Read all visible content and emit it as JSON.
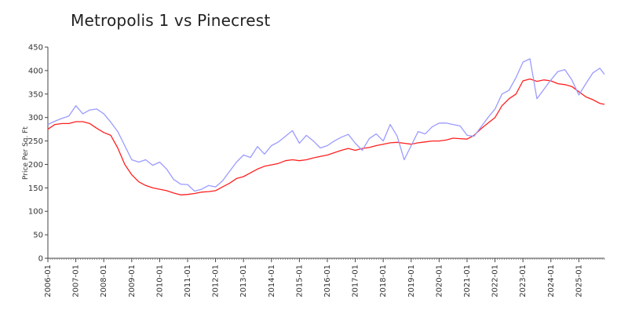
{
  "chart_data": {
    "type": "line",
    "title": "Metropolis 1 vs Pinecrest",
    "xlabel": "",
    "ylabel": "Price Per Sq. Ft",
    "ylim": [
      0,
      450
    ],
    "xlim": [
      "2006-01",
      "2025-12"
    ],
    "yticks": [
      0,
      50,
      100,
      150,
      200,
      250,
      300,
      350,
      400,
      450
    ],
    "xticks": [
      "2006-01",
      "2007-01",
      "2008-01",
      "2009-01",
      "2010-01",
      "2011-01",
      "2012-01",
      "2013-01",
      "2014-01",
      "2015-01",
      "2016-01",
      "2017-01",
      "2018-01",
      "2019-01",
      "2020-01",
      "2021-01",
      "2022-01",
      "2023-01",
      "2024-01",
      "2025-01"
    ],
    "grid": false,
    "legend": "none",
    "series": [
      {
        "color": "#ff2020",
        "points": [
          [
            "2006-01",
            275
          ],
          [
            "2006-04",
            285
          ],
          [
            "2006-07",
            287
          ],
          [
            "2006-10",
            287
          ],
          [
            "2007-01",
            291
          ],
          [
            "2007-04",
            291
          ],
          [
            "2007-07",
            287
          ],
          [
            "2007-10",
            277
          ],
          [
            "2008-01",
            268
          ],
          [
            "2008-04",
            262
          ],
          [
            "2008-07",
            235
          ],
          [
            "2008-10",
            200
          ],
          [
            "2009-01",
            178
          ],
          [
            "2009-04",
            163
          ],
          [
            "2009-07",
            155
          ],
          [
            "2009-10",
            150
          ],
          [
            "2010-01",
            147
          ],
          [
            "2010-04",
            144
          ],
          [
            "2010-07",
            139
          ],
          [
            "2010-10",
            135
          ],
          [
            "2011-01",
            136
          ],
          [
            "2011-04",
            138
          ],
          [
            "2011-07",
            141
          ],
          [
            "2011-10",
            142
          ],
          [
            "2012-01",
            144
          ],
          [
            "2012-04",
            152
          ],
          [
            "2012-07",
            160
          ],
          [
            "2012-10",
            170
          ],
          [
            "2013-01",
            174
          ],
          [
            "2013-04",
            182
          ],
          [
            "2013-07",
            190
          ],
          [
            "2013-10",
            196
          ],
          [
            "2014-01",
            199
          ],
          [
            "2014-04",
            202
          ],
          [
            "2014-07",
            208
          ],
          [
            "2014-10",
            210
          ],
          [
            "2015-01",
            208
          ],
          [
            "2015-04",
            210
          ],
          [
            "2015-07",
            214
          ],
          [
            "2015-10",
            217
          ],
          [
            "2016-01",
            220
          ],
          [
            "2016-04",
            225
          ],
          [
            "2016-07",
            230
          ],
          [
            "2016-10",
            234
          ],
          [
            "2017-01",
            230
          ],
          [
            "2017-04",
            234
          ],
          [
            "2017-07",
            236
          ],
          [
            "2017-10",
            240
          ],
          [
            "2018-01",
            243
          ],
          [
            "2018-04",
            246
          ],
          [
            "2018-07",
            247
          ],
          [
            "2018-10",
            245
          ],
          [
            "2019-01",
            243
          ],
          [
            "2019-04",
            246
          ],
          [
            "2019-07",
            248
          ],
          [
            "2019-10",
            250
          ],
          [
            "2020-01",
            250
          ],
          [
            "2020-04",
            252
          ],
          [
            "2020-07",
            256
          ],
          [
            "2020-10",
            255
          ],
          [
            "2021-01",
            254
          ],
          [
            "2021-04",
            262
          ],
          [
            "2021-07",
            276
          ],
          [
            "2021-10",
            288
          ],
          [
            "2022-01",
            300
          ],
          [
            "2022-04",
            325
          ],
          [
            "2022-07",
            340
          ],
          [
            "2022-10",
            350
          ],
          [
            "2023-01",
            378
          ],
          [
            "2023-04",
            382
          ],
          [
            "2023-07",
            377
          ],
          [
            "2023-10",
            380
          ],
          [
            "2024-01",
            378
          ],
          [
            "2024-04",
            372
          ],
          [
            "2024-07",
            370
          ],
          [
            "2024-10",
            366
          ],
          [
            "2025-01",
            355
          ],
          [
            "2025-04",
            344
          ],
          [
            "2025-07",
            338
          ],
          [
            "2025-10",
            330
          ],
          [
            "2025-12",
            328
          ]
        ]
      },
      {
        "color": "#9b9bff",
        "points": [
          [
            "2006-01",
            285
          ],
          [
            "2006-04",
            292
          ],
          [
            "2006-07",
            298
          ],
          [
            "2006-10",
            303
          ],
          [
            "2007-01",
            325
          ],
          [
            "2007-04",
            308
          ],
          [
            "2007-07",
            316
          ],
          [
            "2007-10",
            318
          ],
          [
            "2008-01",
            308
          ],
          [
            "2008-04",
            290
          ],
          [
            "2008-07",
            270
          ],
          [
            "2008-10",
            240
          ],
          [
            "2009-01",
            210
          ],
          [
            "2009-04",
            205
          ],
          [
            "2009-07",
            210
          ],
          [
            "2009-10",
            198
          ],
          [
            "2010-01",
            205
          ],
          [
            "2010-04",
            190
          ],
          [
            "2010-07",
            168
          ],
          [
            "2010-10",
            158
          ],
          [
            "2011-01",
            157
          ],
          [
            "2011-04",
            143
          ],
          [
            "2011-07",
            147
          ],
          [
            "2011-10",
            155
          ],
          [
            "2012-01",
            152
          ],
          [
            "2012-04",
            165
          ],
          [
            "2012-07",
            185
          ],
          [
            "2012-10",
            205
          ],
          [
            "2013-01",
            220
          ],
          [
            "2013-04",
            215
          ],
          [
            "2013-07",
            238
          ],
          [
            "2013-10",
            222
          ],
          [
            "2014-01",
            240
          ],
          [
            "2014-04",
            248
          ],
          [
            "2014-07",
            260
          ],
          [
            "2014-10",
            272
          ],
          [
            "2015-01",
            245
          ],
          [
            "2015-04",
            262
          ],
          [
            "2015-07",
            250
          ],
          [
            "2015-10",
            235
          ],
          [
            "2016-01",
            240
          ],
          [
            "2016-04",
            250
          ],
          [
            "2016-07",
            258
          ],
          [
            "2016-10",
            264
          ],
          [
            "2017-01",
            245
          ],
          [
            "2017-04",
            230
          ],
          [
            "2017-07",
            255
          ],
          [
            "2017-10",
            265
          ],
          [
            "2018-01",
            250
          ],
          [
            "2018-04",
            285
          ],
          [
            "2018-07",
            260
          ],
          [
            "2018-10",
            210
          ],
          [
            "2019-01",
            240
          ],
          [
            "2019-04",
            270
          ],
          [
            "2019-07",
            265
          ],
          [
            "2019-10",
            280
          ],
          [
            "2020-01",
            288
          ],
          [
            "2020-04",
            288
          ],
          [
            "2020-07",
            285
          ],
          [
            "2020-10",
            282
          ],
          [
            "2021-01",
            262
          ],
          [
            "2021-04",
            260
          ],
          [
            "2021-07",
            280
          ],
          [
            "2021-10",
            300
          ],
          [
            "2022-01",
            318
          ],
          [
            "2022-04",
            350
          ],
          [
            "2022-07",
            358
          ],
          [
            "2022-10",
            385
          ],
          [
            "2023-01",
            418
          ],
          [
            "2023-04",
            425
          ],
          [
            "2023-07",
            340
          ],
          [
            "2023-10",
            360
          ],
          [
            "2024-01",
            380
          ],
          [
            "2024-04",
            398
          ],
          [
            "2024-07",
            402
          ],
          [
            "2024-10",
            380
          ],
          [
            "2025-01",
            348
          ],
          [
            "2025-04",
            372
          ],
          [
            "2025-07",
            395
          ],
          [
            "2025-10",
            405
          ],
          [
            "2025-12",
            392
          ]
        ]
      }
    ]
  }
}
